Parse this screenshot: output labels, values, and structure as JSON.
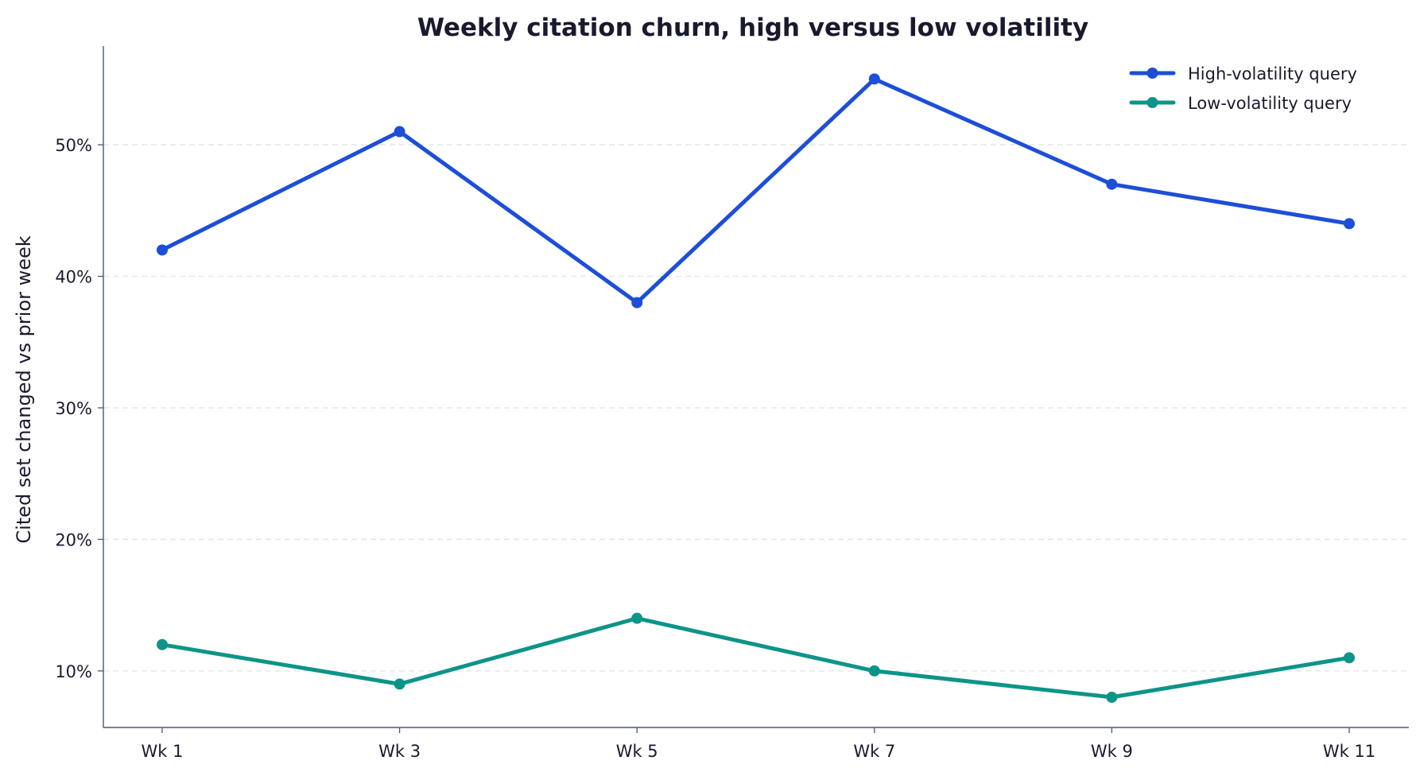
{
  "chart_data": {
    "type": "line",
    "title": "Weekly citation churn, high versus low volatility",
    "xlabel": "",
    "ylabel": "Cited set changed vs prior week",
    "categories": [
      "Wk 1",
      "Wk 3",
      "Wk 5",
      "Wk 7",
      "Wk 9",
      "Wk 11"
    ],
    "ylim": [
      5.7,
      57.5
    ],
    "yticks": [
      10,
      20,
      30,
      40,
      50
    ],
    "ytick_labels": [
      "10%",
      "20%",
      "30%",
      "40%",
      "50%"
    ],
    "grid": "horizontal-dashed",
    "legend_position": "top-right",
    "series": [
      {
        "name": "High-volatility query",
        "color": "#1d4ed8",
        "values": [
          42,
          51,
          38,
          55,
          47,
          44
        ]
      },
      {
        "name": "Low-volatility query",
        "color": "#0d9488",
        "values": [
          12,
          9,
          14,
          10,
          8,
          11
        ]
      }
    ],
    "colors": {
      "text": "#1a1a2e",
      "axis": "#4a5578",
      "grid": "#dfe3ea"
    }
  }
}
